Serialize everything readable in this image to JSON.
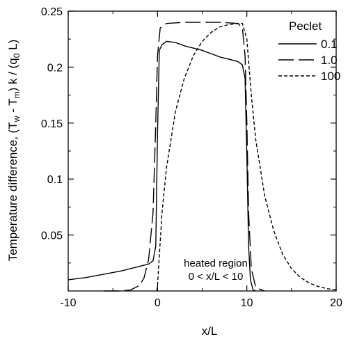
{
  "chart_data": {
    "type": "line",
    "xlabel": "x/L",
    "ylabel": "Temperature difference, (T",
    "ylabel_parts": [
      "Temperature difference, (T",
      "w",
      " - T",
      "m",
      ") k / (q",
      "0",
      " L)"
    ],
    "xlim": [
      -10,
      20
    ],
    "ylim": [
      0,
      0.25
    ],
    "x_ticks": [
      -10,
      0,
      10,
      20
    ],
    "x_tick_labels": [
      "-10",
      "0",
      "10",
      "20"
    ],
    "y_ticks": [
      0.05,
      0.1,
      0.15,
      0.2,
      0.25
    ],
    "y_tick_labels": [
      "0.05",
      "0.1",
      "0.15",
      "0.2",
      "0.25"
    ],
    "grid": false,
    "legend": {
      "title": "Peclet",
      "placement": "top-right"
    },
    "annotation": {
      "line1": "heated region",
      "line2": "0 < x/L < 10"
    },
    "series": [
      {
        "name": "0.1",
        "dash": "solid",
        "points": [
          [
            -10,
            0.01
          ],
          [
            -8,
            0.012
          ],
          [
            -6,
            0.015
          ],
          [
            -4,
            0.018
          ],
          [
            -2,
            0.022
          ],
          [
            -1,
            0.024
          ],
          [
            -0.5,
            0.027
          ],
          [
            -0.2,
            0.04
          ],
          [
            0,
            0.14
          ],
          [
            0.2,
            0.215
          ],
          [
            0.5,
            0.22
          ],
          [
            1,
            0.223
          ],
          [
            2,
            0.222
          ],
          [
            3,
            0.219
          ],
          [
            4,
            0.217
          ],
          [
            5,
            0.215
          ],
          [
            6,
            0.212
          ],
          [
            7,
            0.209
          ],
          [
            8,
            0.207
          ],
          [
            9,
            0.205
          ],
          [
            9.5,
            0.202
          ],
          [
            9.8,
            0.19
          ],
          [
            10,
            0.12
          ],
          [
            10.2,
            0.04
          ],
          [
            10.4,
            0.01
          ],
          [
            10.7,
            0.001
          ],
          [
            11,
            0
          ]
        ]
      },
      {
        "name": "1.0",
        "dash": "long-dash",
        "points": [
          [
            -6,
            0
          ],
          [
            -4,
            0
          ],
          [
            -3,
            0.001
          ],
          [
            -2,
            0.005
          ],
          [
            -1.5,
            0.012
          ],
          [
            -1,
            0.028
          ],
          [
            -0.5,
            0.07
          ],
          [
            -0.2,
            0.15
          ],
          [
            0,
            0.21
          ],
          [
            0.3,
            0.235
          ],
          [
            1,
            0.239
          ],
          [
            3,
            0.24
          ],
          [
            5,
            0.24
          ],
          [
            7,
            0.24
          ],
          [
            9,
            0.239
          ],
          [
            9.5,
            0.235
          ],
          [
            9.8,
            0.21
          ],
          [
            10,
            0.15
          ],
          [
            10.2,
            0.07
          ],
          [
            10.5,
            0.02
          ],
          [
            11,
            0.003
          ],
          [
            12,
            0
          ]
        ]
      },
      {
        "name": "100",
        "dash": "short-dash",
        "points": [
          [
            -0.1,
            0
          ],
          [
            0,
            0.005
          ],
          [
            0.5,
            0.07
          ],
          [
            1,
            0.11
          ],
          [
            2,
            0.16
          ],
          [
            3,
            0.19
          ],
          [
            4,
            0.21
          ],
          [
            5,
            0.223
          ],
          [
            6,
            0.231
          ],
          [
            7,
            0.236
          ],
          [
            8,
            0.238
          ],
          [
            9,
            0.239
          ],
          [
            9.5,
            0.239
          ],
          [
            10,
            0.225
          ],
          [
            10.5,
            0.175
          ],
          [
            11,
            0.135
          ],
          [
            12,
            0.085
          ],
          [
            13,
            0.054
          ],
          [
            14,
            0.033
          ],
          [
            15,
            0.02
          ],
          [
            16,
            0.012
          ],
          [
            17,
            0.007
          ],
          [
            18,
            0.004
          ],
          [
            19,
            0.002
          ],
          [
            20,
            0.001
          ]
        ]
      }
    ]
  }
}
